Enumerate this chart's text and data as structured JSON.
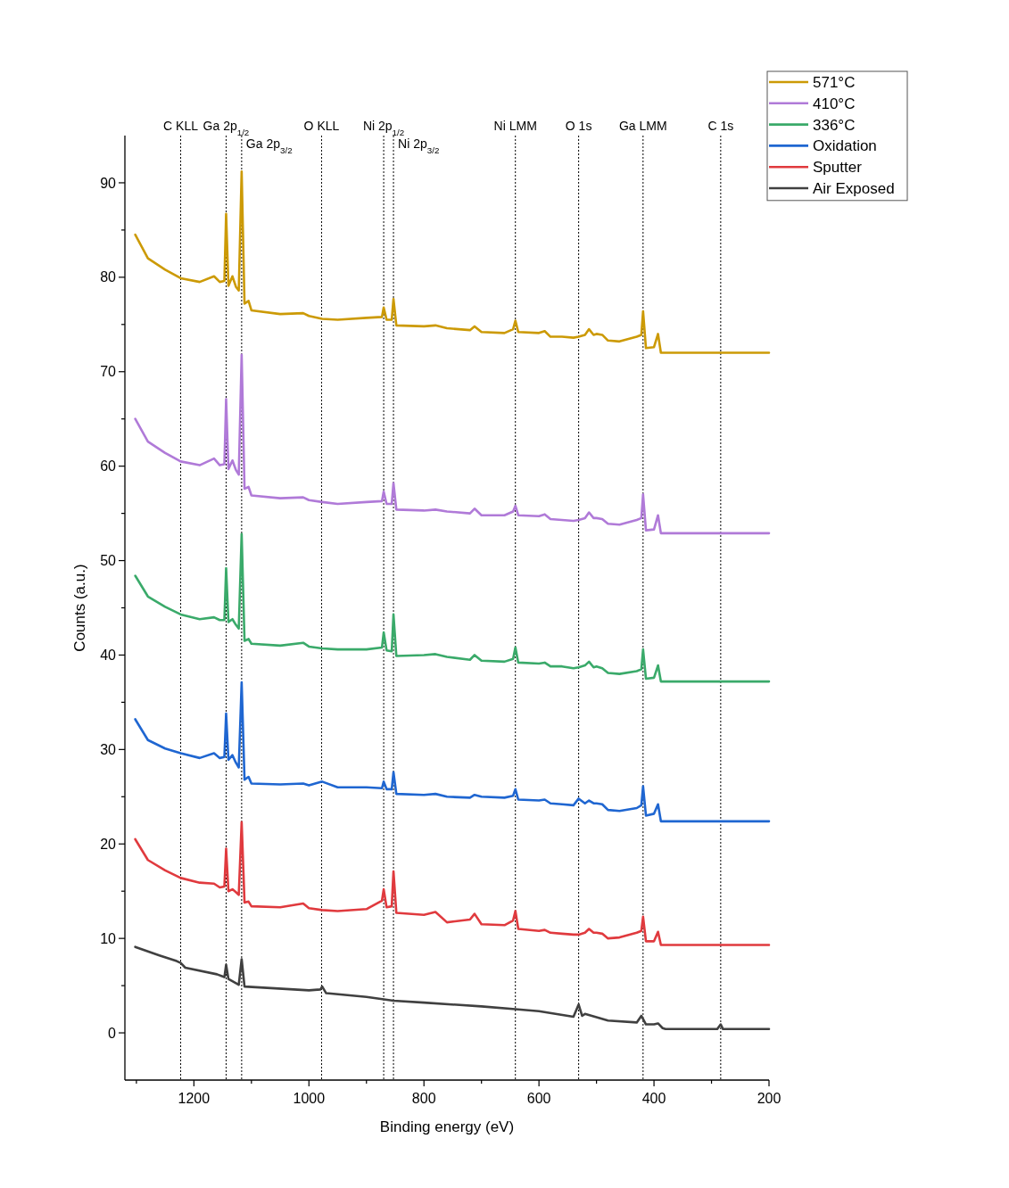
{
  "chart_data": {
    "type": "line",
    "xlabel": "Binding energy (eV)",
    "ylabel": "Counts (a.u.)",
    "xlim": [
      1320,
      200
    ],
    "ylim": [
      -5,
      95
    ],
    "xticks": [
      {
        "value": 1300,
        "label": null
      },
      1200,
      {
        "value": 1100,
        "label": null
      },
      1000,
      {
        "value": 900,
        "label": null
      },
      800,
      {
        "value": 700,
        "label": null
      },
      600,
      {
        "value": 500,
        "label": null
      },
      400,
      {
        "value": 300,
        "label": null
      },
      200
    ],
    "yticks": [
      0,
      {
        "value": 5,
        "label": null
      },
      10,
      {
        "value": 15,
        "label": null
      },
      20,
      {
        "value": 25,
        "label": null
      },
      30,
      {
        "value": 35,
        "label": null
      },
      40,
      {
        "value": 45,
        "label": null
      },
      50,
      {
        "value": 55,
        "label": null
      },
      60,
      {
        "value": 65,
        "label": null
      },
      70,
      {
        "value": 75,
        "label": null
      },
      80,
      {
        "value": 85,
        "label": null
      },
      90
    ],
    "grid": false,
    "legend": "top right",
    "marker": "none",
    "line_style": "solid",
    "ref_lines": [
      {
        "axis": "x",
        "value": 1223,
        "label": "C KLL",
        "line_style": "dotted",
        "color": "#000000"
      },
      {
        "axis": "x",
        "value": 1144,
        "label": "Ga 2p$_{1/2}$",
        "line_style": "dotted",
        "color": "#000000"
      },
      {
        "axis": "x",
        "value": 1117,
        "label": "Ga 2p$_{3/2}$",
        "line_style": "dotted",
        "color": "#000000"
      },
      {
        "axis": "x",
        "value": 978,
        "label": "O KLL",
        "line_style": "dotted",
        "color": "#000000"
      },
      {
        "axis": "x",
        "value": 870,
        "label": "Ni 2p$_{1/2}$",
        "line_style": "dotted",
        "color": "#000000"
      },
      {
        "axis": "x",
        "value": 853,
        "label": "Ni 2p$_{3/2}$",
        "line_style": "dotted",
        "color": "#000000"
      },
      {
        "axis": "x",
        "value": 641,
        "label": "Ni LMM",
        "line_style": "dotted",
        "color": "#000000"
      },
      {
        "axis": "x",
        "value": 531,
        "label": "O 1s",
        "line_style": "dotted",
        "color": "#000000"
      },
      {
        "axis": "x",
        "value": 419,
        "label": "Ga LMM",
        "line_style": "dotted",
        "color": "#000000"
      },
      {
        "axis": "x",
        "value": 284,
        "label": "C 1s",
        "line_style": "dotted",
        "color": "#000000"
      }
    ],
    "x": [
      1302,
      1280,
      1250,
      1223,
      1190,
      1165,
      1155,
      1147,
      1144,
      1140,
      1133,
      1127,
      1122,
      1117,
      1112,
      1105,
      1100,
      1050,
      1010,
      1000,
      977,
      950,
      900,
      873,
      870,
      865,
      856,
      853,
      848,
      800,
      780,
      760,
      720,
      712,
      700,
      660,
      645,
      641,
      636,
      600,
      590,
      580,
      560,
      540,
      531,
      520,
      513,
      505,
      500,
      490,
      480,
      460,
      430,
      422,
      419,
      414,
      400,
      393,
      388,
      380,
      300,
      200
    ],
    "series": [
      {
        "name": "571°C",
        "color": "#cc9a06",
        "values": [
          84.5,
          82.0,
          80.8,
          79.9,
          79.5,
          80.1,
          79.5,
          79.6,
          86.7,
          79.1,
          80.1,
          79.0,
          78.6,
          91.2,
          77.2,
          77.5,
          76.5,
          76.1,
          76.2,
          75.9,
          75.6,
          75.5,
          75.7,
          75.8,
          76.8,
          75.5,
          75.5,
          77.7,
          74.9,
          74.8,
          74.9,
          74.6,
          74.4,
          74.8,
          74.2,
          74.1,
          74.5,
          75.4,
          74.2,
          74.1,
          74.3,
          73.7,
          73.7,
          73.6,
          73.7,
          73.9,
          74.5,
          73.9,
          74.0,
          73.9,
          73.3,
          73.2,
          73.7,
          73.9,
          76.4,
          72.5,
          72.6,
          74.0,
          72.0,
          72.0,
          72.0,
          72.0
        ]
      },
      {
        "name": "410°C",
        "color": "#b07ad8",
        "values": [
          65.0,
          62.6,
          61.4,
          60.5,
          60.1,
          60.8,
          60.1,
          60.2,
          67.1,
          59.7,
          60.6,
          59.6,
          59.1,
          71.8,
          57.6,
          57.8,
          56.9,
          56.6,
          56.7,
          56.4,
          56.2,
          56.0,
          56.2,
          56.3,
          57.3,
          56.0,
          56.0,
          58.2,
          55.4,
          55.3,
          55.4,
          55.2,
          55.0,
          55.5,
          54.8,
          54.8,
          55.2,
          55.8,
          54.8,
          54.7,
          54.9,
          54.4,
          54.3,
          54.2,
          54.3,
          54.5,
          55.1,
          54.5,
          54.5,
          54.4,
          53.9,
          53.8,
          54.3,
          54.5,
          57.0,
          53.2,
          53.3,
          54.8,
          52.9,
          52.9,
          52.9,
          52.9
        ]
      },
      {
        "name": "336°C",
        "color": "#3aaa6a",
        "values": [
          48.4,
          46.2,
          45.1,
          44.3,
          43.8,
          44.0,
          43.7,
          43.7,
          49.2,
          43.5,
          43.8,
          43.2,
          42.8,
          52.8,
          41.5,
          41.7,
          41.2,
          41.0,
          41.3,
          40.9,
          40.7,
          40.6,
          40.6,
          40.8,
          42.4,
          40.5,
          40.4,
          44.3,
          39.9,
          40.0,
          40.1,
          39.8,
          39.5,
          40.0,
          39.4,
          39.3,
          39.6,
          40.8,
          39.2,
          39.1,
          39.2,
          38.8,
          38.8,
          38.6,
          38.7,
          38.9,
          39.3,
          38.7,
          38.8,
          38.6,
          38.1,
          38.0,
          38.3,
          38.5,
          40.6,
          37.5,
          37.6,
          38.9,
          37.2,
          37.2,
          37.2,
          37.2
        ]
      },
      {
        "name": "Oxidation",
        "color": "#1f66d1",
        "values": [
          33.2,
          31.0,
          30.1,
          29.6,
          29.1,
          29.6,
          29.1,
          29.2,
          33.8,
          28.9,
          29.4,
          28.6,
          28.1,
          37.1,
          26.8,
          27.1,
          26.4,
          26.3,
          26.4,
          26.2,
          26.6,
          26.0,
          26.0,
          25.9,
          26.6,
          25.8,
          25.8,
          27.6,
          25.3,
          25.2,
          25.3,
          25.0,
          24.9,
          25.2,
          25.0,
          24.9,
          25.1,
          25.8,
          24.7,
          24.6,
          24.7,
          24.3,
          24.2,
          24.1,
          24.8,
          24.3,
          24.6,
          24.3,
          24.3,
          24.2,
          23.6,
          23.5,
          23.8,
          24.1,
          26.1,
          23.0,
          23.2,
          24.2,
          22.4,
          22.4,
          22.4,
          22.4
        ]
      },
      {
        "name": "Sputter",
        "color": "#e03a3e",
        "values": [
          20.5,
          18.3,
          17.2,
          16.4,
          15.9,
          15.8,
          15.4,
          15.5,
          19.5,
          15.0,
          15.2,
          14.9,
          14.6,
          22.3,
          13.8,
          13.9,
          13.4,
          13.3,
          13.7,
          13.2,
          13.0,
          12.9,
          13.1,
          14.0,
          15.2,
          13.3,
          13.4,
          17.1,
          12.7,
          12.5,
          12.8,
          11.7,
          12.0,
          12.6,
          11.5,
          11.4,
          11.9,
          12.9,
          11.0,
          10.8,
          10.9,
          10.6,
          10.5,
          10.4,
          10.4,
          10.6,
          11.0,
          10.6,
          10.6,
          10.5,
          10.0,
          10.1,
          10.6,
          10.8,
          12.3,
          9.7,
          9.7,
          10.7,
          9.3,
          9.3,
          9.3,
          9.3
        ]
      },
      {
        "name": "Air Exposed",
        "color": "#404040",
        "x": [
          1302,
          1260,
          1230,
          1223,
          1215,
          1160,
          1147,
          1144,
          1140,
          1122,
          1117,
          1112,
          1000,
          980,
          977,
          970,
          900,
          853,
          800,
          700,
          641,
          600,
          540,
          531,
          525,
          520,
          480,
          430,
          422,
          414,
          400,
          393,
          385,
          380,
          290,
          284,
          280,
          200
        ],
        "values": [
          9.1,
          8.2,
          7.6,
          7.4,
          6.9,
          6.2,
          5.9,
          7.2,
          5.7,
          5.1,
          7.8,
          4.9,
          4.5,
          4.6,
          4.9,
          4.2,
          3.8,
          3.4,
          3.2,
          2.8,
          2.5,
          2.3,
          1.7,
          3.0,
          1.8,
          2.0,
          1.3,
          1.1,
          1.8,
          0.9,
          0.9,
          1.0,
          0.5,
          0.4,
          0.4,
          0.9,
          0.4,
          0.4
        ]
      }
    ]
  }
}
